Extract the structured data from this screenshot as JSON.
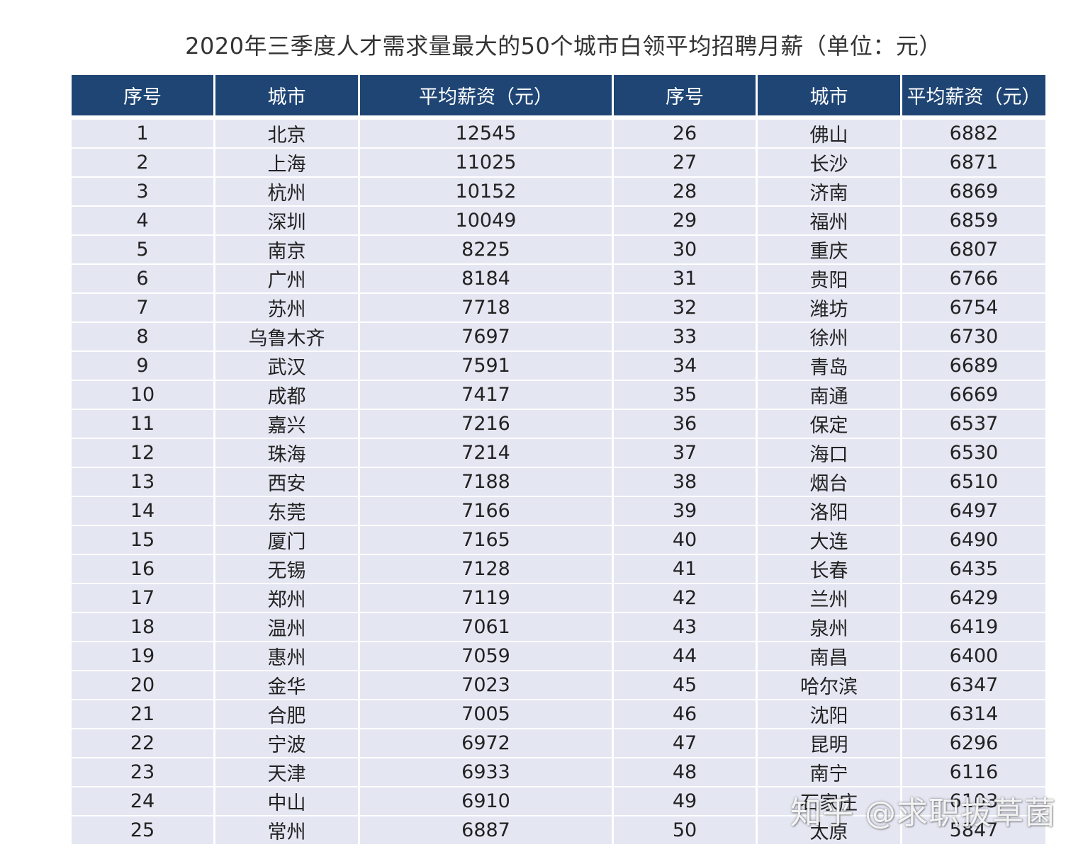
{
  "title": "2020年三季度人才需求量最大的50个城市白领平均招聘月薪（单位：元）",
  "columns": [
    "序号",
    "城市",
    "平均薪资（元）",
    "序号",
    "城市",
    "平均薪资（元）"
  ],
  "rows": [
    [
      "1",
      "北京",
      "12545",
      "26",
      "佛山",
      "6882"
    ],
    [
      "2",
      "上海",
      "11025",
      "27",
      "长沙",
      "6871"
    ],
    [
      "3",
      "杭州",
      "10152",
      "28",
      "济南",
      "6869"
    ],
    [
      "4",
      "深圳",
      "10049",
      "29",
      "福州",
      "6859"
    ],
    [
      "5",
      "南京",
      "8225",
      "30",
      "重庆",
      "6807"
    ],
    [
      "6",
      "广州",
      "8184",
      "31",
      "贵阳",
      "6766"
    ],
    [
      "7",
      "苏州",
      "7718",
      "32",
      "潍坊",
      "6754"
    ],
    [
      "8",
      "乌鲁木齐",
      "7697",
      "33",
      "徐州",
      "6730"
    ],
    [
      "9",
      "武汉",
      "7591",
      "34",
      "青岛",
      "6689"
    ],
    [
      "10",
      "成都",
      "7417",
      "35",
      "南通",
      "6669"
    ],
    [
      "11",
      "嘉兴",
      "7216",
      "36",
      "保定",
      "6537"
    ],
    [
      "12",
      "珠海",
      "7214",
      "37",
      "海口",
      "6530"
    ],
    [
      "13",
      "西安",
      "7188",
      "38",
      "烟台",
      "6510"
    ],
    [
      "14",
      "东莞",
      "7166",
      "39",
      "洛阳",
      "6497"
    ],
    [
      "15",
      "厦门",
      "7165",
      "40",
      "大连",
      "6490"
    ],
    [
      "16",
      "无锡",
      "7128",
      "41",
      "长春",
      "6435"
    ],
    [
      "17",
      "郑州",
      "7119",
      "42",
      "兰州",
      "6429"
    ],
    [
      "18",
      "温州",
      "7061",
      "43",
      "泉州",
      "6419"
    ],
    [
      "19",
      "惠州",
      "7059",
      "44",
      "南昌",
      "6400"
    ],
    [
      "20",
      "金华",
      "7023",
      "45",
      "哈尔滨",
      "6347"
    ],
    [
      "21",
      "合肥",
      "7005",
      "46",
      "沈阳",
      "6314"
    ],
    [
      "22",
      "宁波",
      "6972",
      "47",
      "昆明",
      "6296"
    ],
    [
      "23",
      "天津",
      "6933",
      "48",
      "南宁",
      "6116"
    ],
    [
      "24",
      "中山",
      "6910",
      "49",
      "石家庄",
      "6103"
    ],
    [
      "25",
      "常州",
      "6887",
      "50",
      "太原",
      "5847"
    ]
  ],
  "watermark": "知乎 @求职拔草菌",
  "colors": {
    "header_bg": "#1e4574",
    "row_bg": "#e4e6f2",
    "title_text": "#333333"
  }
}
